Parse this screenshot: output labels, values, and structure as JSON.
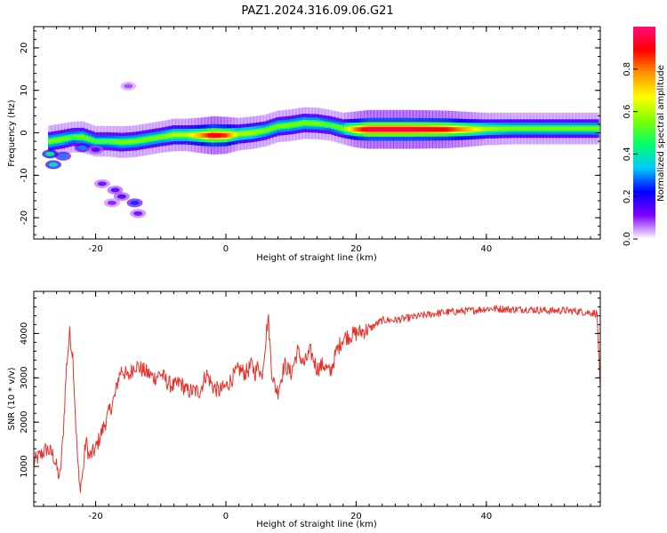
{
  "figure": {
    "title": "PAZ1.2024.316.09.06.G21"
  },
  "chart_data": [
    {
      "type": "heatmap",
      "xlabel": "Height of straight line (km)",
      "ylabel": "Frequency (Hz)",
      "xlim": [
        -29.5,
        57.5
      ],
      "ylim": [
        -25,
        25
      ],
      "xticks": [
        -20,
        0,
        20,
        40
      ],
      "yticks": [
        -20,
        -10,
        0,
        10,
        20
      ],
      "colorbar": {
        "label": "Normalized spectral amplitude",
        "range": [
          0,
          1
        ],
        "ticks": [
          "0.0",
          "0.2",
          "0.4",
          "0.6",
          "0.8"
        ],
        "tick_values": [
          0,
          0.2,
          0.4,
          0.6,
          0.8
        ],
        "colors": [
          "#ffffff",
          "#7e00ff",
          "#0000ff",
          "#00c8ff",
          "#00ff6a",
          "#7cff00",
          "#ffff00",
          "#ff9600",
          "#ff0000",
          "#ff0a78"
        ]
      },
      "ridge": [
        {
          "x": -27.0,
          "y": -2.0,
          "a": 0.55
        },
        {
          "x": -25.0,
          "y": -1.5,
          "a": 0.55
        },
        {
          "x": -23.5,
          "y": -1.0,
          "a": 0.5
        },
        {
          "x": -22.0,
          "y": -1.0,
          "a": 0.55
        },
        {
          "x": -20.0,
          "y": -2.0,
          "a": 0.5
        },
        {
          "x": -18.0,
          "y": -2.0,
          "a": 0.5
        },
        {
          "x": -16.0,
          "y": -2.2,
          "a": 0.55
        },
        {
          "x": -14.0,
          "y": -2.0,
          "a": 0.55
        },
        {
          "x": -12.0,
          "y": -1.5,
          "a": 0.55
        },
        {
          "x": -10.0,
          "y": -1.0,
          "a": 0.55
        },
        {
          "x": -8.0,
          "y": -0.5,
          "a": 0.6
        },
        {
          "x": -6.0,
          "y": -0.5,
          "a": 0.6
        },
        {
          "x": -4.0,
          "y": -0.6,
          "a": 0.75
        },
        {
          "x": -2.0,
          "y": -0.6,
          "a": 0.92
        },
        {
          "x": 0.0,
          "y": -0.6,
          "a": 0.85
        },
        {
          "x": 2.0,
          "y": -0.3,
          "a": 0.6
        },
        {
          "x": 4.0,
          "y": 0.0,
          "a": 0.6
        },
        {
          "x": 6.0,
          "y": 0.5,
          "a": 0.55
        },
        {
          "x": 8.0,
          "y": 1.5,
          "a": 0.55
        },
        {
          "x": 10.0,
          "y": 1.8,
          "a": 0.55
        },
        {
          "x": 12.0,
          "y": 2.3,
          "a": 0.55
        },
        {
          "x": 14.0,
          "y": 2.2,
          "a": 0.55
        },
        {
          "x": 16.0,
          "y": 1.8,
          "a": 0.5
        },
        {
          "x": 18.0,
          "y": 1.0,
          "a": 0.55
        },
        {
          "x": 20.0,
          "y": 0.8,
          "a": 0.8
        },
        {
          "x": 22.0,
          "y": 0.8,
          "a": 0.95
        },
        {
          "x": 25.0,
          "y": 0.8,
          "a": 0.95
        },
        {
          "x": 28.0,
          "y": 0.8,
          "a": 0.95
        },
        {
          "x": 31.0,
          "y": 0.8,
          "a": 0.92
        },
        {
          "x": 34.0,
          "y": 0.8,
          "a": 0.88
        },
        {
          "x": 37.0,
          "y": 0.8,
          "a": 0.75
        },
        {
          "x": 40.0,
          "y": 0.9,
          "a": 0.6
        },
        {
          "x": 44.0,
          "y": 1.0,
          "a": 0.55
        },
        {
          "x": 48.0,
          "y": 1.0,
          "a": 0.55
        },
        {
          "x": 52.0,
          "y": 1.0,
          "a": 0.55
        },
        {
          "x": 57.0,
          "y": 1.0,
          "a": 0.55
        }
      ],
      "blobs": [
        {
          "x": -27.0,
          "y": -5.0,
          "a": 0.45
        },
        {
          "x": -26.5,
          "y": -7.5,
          "a": 0.4
        },
        {
          "x": -25.0,
          "y": -5.5,
          "a": 0.3
        },
        {
          "x": -22.0,
          "y": -3.5,
          "a": 0.3
        },
        {
          "x": -20.0,
          "y": -4.0,
          "a": 0.15
        },
        {
          "x": -19.0,
          "y": -12.0,
          "a": 0.12
        },
        {
          "x": -17.0,
          "y": -13.5,
          "a": 0.15
        },
        {
          "x": -16.0,
          "y": -15.0,
          "a": 0.15
        },
        {
          "x": -14.0,
          "y": -16.5,
          "a": 0.25
        },
        {
          "x": -13.5,
          "y": -19.0,
          "a": 0.12
        },
        {
          "x": -17.5,
          "y": -16.5,
          "a": 0.1
        },
        {
          "x": -15.0,
          "y": 11.0,
          "a": 0.08
        }
      ]
    },
    {
      "type": "line",
      "xlabel": "Height of straight line (km)",
      "ylabel": "SNR (10 * v/v)",
      "xlim": [
        -29.5,
        57.5
      ],
      "ylim": [
        100,
        4950
      ],
      "xticks": [
        -20,
        0,
        20,
        40
      ],
      "yticks": [
        1000,
        2000,
        3000,
        4000
      ],
      "series": [
        {
          "color": "#e8322a",
          "x": [
            -29.5,
            -28.5,
            -27.5,
            -26.5,
            -25.5,
            -25.0,
            -24.5,
            -24.0,
            -23.5,
            -23.0,
            -22.5,
            -22.0,
            -21.5,
            -21.0,
            -20.0,
            -19.0,
            -18.0,
            -17.0,
            -16.5,
            -16.0,
            -15.0,
            -14.0,
            -13.0,
            -12.0,
            -11.0,
            -10.0,
            -9.0,
            -8.0,
            -7.0,
            -6.0,
            -5.0,
            -4.0,
            -3.0,
            -2.0,
            -1.0,
            0.0,
            1.0,
            2.0,
            3.0,
            4.0,
            4.5,
            5.0,
            5.5,
            6.0,
            6.5,
            7.0,
            7.5,
            8.0,
            9.0,
            10.0,
            11.0,
            12.0,
            13.0,
            14.0,
            15.0,
            16.0,
            17.0,
            18.0,
            20.0,
            22.0,
            24.0,
            26.0,
            28.0,
            30.0,
            32.0,
            34.0,
            36.0,
            38.0,
            40.0,
            42.0,
            44.0,
            46.0,
            48.0,
            50.0,
            52.0,
            54.0,
            56.0,
            57.0,
            57.5
          ],
          "y": [
            1100,
            1250,
            1400,
            1250,
            700,
            1700,
            3200,
            4000,
            3500,
            1800,
            500,
            800,
            1600,
            1200,
            1400,
            1800,
            2200,
            2600,
            3000,
            3200,
            3000,
            3300,
            3200,
            3100,
            3000,
            3100,
            2900,
            2800,
            2900,
            2700,
            2700,
            2700,
            3100,
            2800,
            2700,
            2800,
            3000,
            3200,
            3100,
            3300,
            3100,
            3300,
            3000,
            3700,
            4400,
            3200,
            2800,
            2700,
            3300,
            3100,
            3600,
            3300,
            3600,
            3200,
            3300,
            3100,
            3600,
            3900,
            4000,
            4100,
            4300,
            4300,
            4350,
            4400,
            4450,
            4480,
            4500,
            4520,
            4560,
            4560,
            4540,
            4550,
            4530,
            4510,
            4520,
            4500,
            4470,
            4450,
            2700
          ],
          "noise": 190
        }
      ]
    }
  ]
}
